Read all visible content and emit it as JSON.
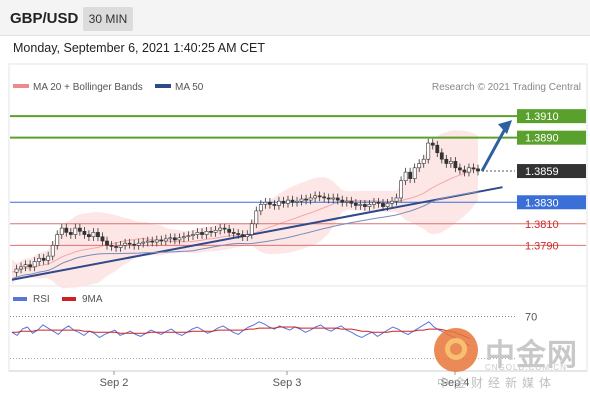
{
  "header": {
    "symbol": "GBP/USD",
    "timeframe": "30 MIN",
    "datetime": "Monday, September 6, 2021 1:40:25 AM CET"
  },
  "legend": {
    "ma20_label": "MA 20 + Bollinger Bands",
    "ma50_label": "MA 50",
    "credit": "Research © 2021 Trading Central",
    "ma20_color": "#f08a8a",
    "ma50_color": "#2e4a8a"
  },
  "rsi_legend": {
    "rsi_label": "RSI",
    "ma_label": "9MA",
    "rsi_color": "#5577dd",
    "ma_color": "#cc2222"
  },
  "watermark": {
    "title": "中金网",
    "url": "CNGOLD.COM.CN",
    "subtitle": "中金财经新媒体"
  },
  "chart_data": [
    {
      "type": "candlestick",
      "ylim": [
        1.3755,
        1.3925
      ],
      "x_ticks": [
        "Sep 2",
        "Sep 3",
        "Sep 4"
      ],
      "current_price": 1.3859,
      "levels": [
        {
          "value": 1.391,
          "label": "1.3910",
          "kind": "resistance",
          "color": "#5aa02c"
        },
        {
          "value": 1.389,
          "label": "1.3890",
          "kind": "resistance",
          "color": "#5aa02c"
        },
        {
          "value": 1.3859,
          "label": "1.3859",
          "kind": "last",
          "color": "#333333"
        },
        {
          "value": 1.383,
          "label": "1.3830",
          "kind": "pivot",
          "color": "#3a6fd8"
        },
        {
          "value": 1.381,
          "label": "1.3810",
          "kind": "support",
          "color": "#e07070"
        },
        {
          "value": 1.379,
          "label": "1.3790",
          "kind": "support",
          "color": "#e07070"
        }
      ],
      "close_series": [
        1.3765,
        1.3768,
        1.377,
        1.3772,
        1.377,
        1.3775,
        1.3778,
        1.3776,
        1.378,
        1.379,
        1.38,
        1.3806,
        1.3802,
        1.38,
        1.3806,
        1.3803,
        1.38,
        1.3798,
        1.3802,
        1.3798,
        1.3794,
        1.379,
        1.3789,
        1.3788,
        1.379,
        1.3792,
        1.3791,
        1.379,
        1.3792,
        1.3793,
        1.3794,
        1.3793,
        1.3795,
        1.3794,
        1.3796,
        1.3797,
        1.3795,
        1.3797,
        1.3798,
        1.3799,
        1.38,
        1.3802,
        1.38,
        1.3803,
        1.3802,
        1.3804,
        1.3806,
        1.3805,
        1.3802,
        1.3801,
        1.38,
        1.3798,
        1.38,
        1.381,
        1.3822,
        1.3828,
        1.383,
        1.3828,
        1.3827,
        1.3831,
        1.3829,
        1.3832,
        1.383,
        1.3831,
        1.3833,
        1.3832,
        1.3834,
        1.3836,
        1.3835,
        1.3834,
        1.3833,
        1.3834,
        1.3832,
        1.383,
        1.3831,
        1.3829,
        1.3827,
        1.3828,
        1.3826,
        1.3828,
        1.383,
        1.3829,
        1.3826,
        1.3829,
        1.3831,
        1.3834,
        1.385,
        1.3858,
        1.3852,
        1.3862,
        1.3866,
        1.387,
        1.3885,
        1.3883,
        1.3876,
        1.387,
        1.3866,
        1.3868,
        1.3862,
        1.386,
        1.3858,
        1.3862,
        1.3861,
        1.3859
      ],
      "trendlines": [
        {
          "from_index": 0,
          "from_value": 1.3758,
          "to_index": 104,
          "to_value": 1.384,
          "color": "#2e4a8a"
        }
      ],
      "forecast_arrow": {
        "from_value": 1.3859,
        "to_value": 1.391,
        "color": "#2e5fa0"
      }
    },
    {
      "type": "line",
      "title": "RSI",
      "levels": [
        70
      ],
      "level_labels": [
        "70"
      ],
      "ylim": [
        20,
        80
      ],
      "series": [
        {
          "name": "RSI",
          "values": [
            55,
            52,
            58,
            60,
            54,
            57,
            62,
            59,
            56,
            53,
            58,
            61,
            57,
            55,
            52,
            56,
            54,
            50,
            53,
            55,
            57,
            52,
            54,
            56,
            53,
            51,
            54,
            57,
            55,
            53,
            56,
            58,
            54,
            52,
            55,
            58,
            60,
            57,
            54,
            56,
            59,
            61,
            58,
            55,
            53,
            57,
            60,
            62,
            65,
            63,
            60,
            58,
            61,
            59,
            57,
            60,
            58,
            55,
            57,
            60,
            62,
            58,
            56,
            59,
            61,
            57,
            55,
            52,
            50,
            53,
            55,
            51,
            54,
            57,
            60,
            58,
            55,
            53,
            56,
            59,
            62,
            65,
            60,
            57,
            55,
            52,
            50,
            47,
            45,
            42
          ]
        },
        {
          "name": "9MA",
          "values": [
            55,
            55,
            56,
            56,
            56,
            57,
            57,
            57,
            57,
            57,
            57,
            57,
            57,
            57,
            56,
            56,
            55,
            55,
            55,
            55,
            55,
            54,
            54,
            54,
            54,
            54,
            54,
            55,
            55,
            55,
            55,
            55,
            55,
            55,
            55,
            56,
            56,
            56,
            56,
            56,
            57,
            57,
            57,
            57,
            57,
            57,
            58,
            58,
            59,
            59,
            59,
            59,
            60,
            60,
            60,
            60,
            59,
            59,
            59,
            59,
            59,
            59,
            59,
            59,
            58,
            58,
            58,
            57,
            56,
            56,
            55,
            55,
            55,
            55,
            56,
            56,
            56,
            56,
            56,
            57,
            57,
            58,
            58,
            58,
            57,
            56,
            55,
            53,
            51,
            49
          ]
        }
      ]
    }
  ]
}
